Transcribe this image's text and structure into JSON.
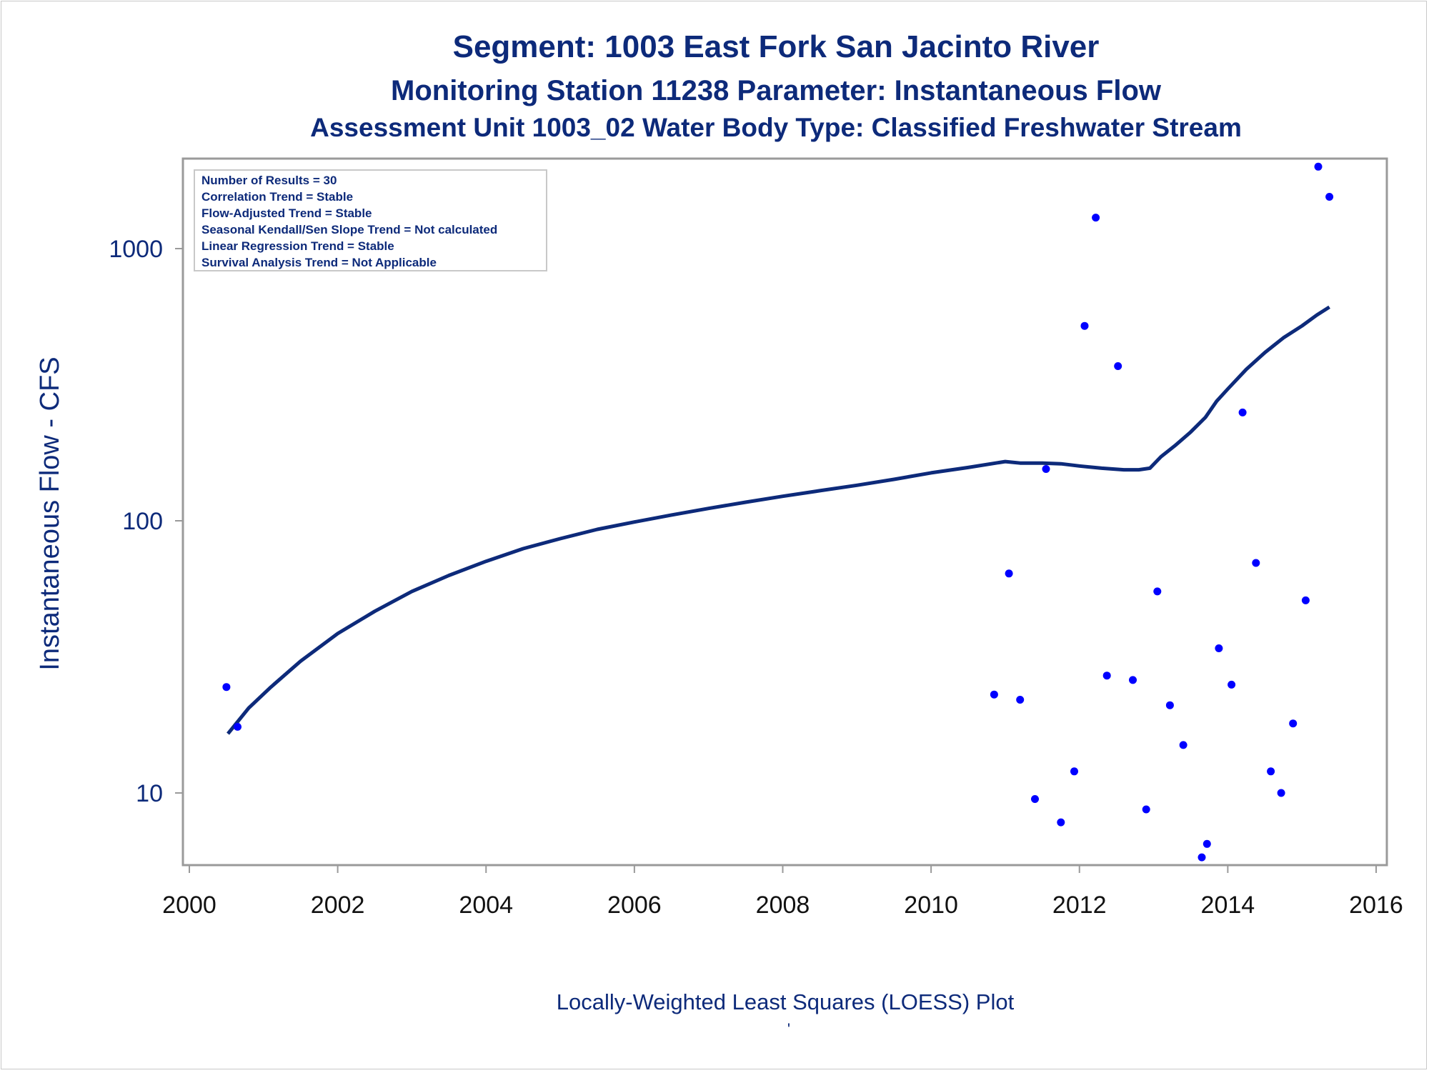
{
  "titles": {
    "line1": "Segment: 1003  East Fork San Jacinto River",
    "line2": "Monitoring Station 11238 Parameter: Instantaneous Flow",
    "line3": "Assessment Unit 1003_02   Water Body Type: Classified Freshwater Stream"
  },
  "footnote": "Locally-Weighted Least Squares (LOESS) Plot",
  "footnote_mark": "'",
  "stats_box": [
    "Number of Results = 30",
    "Correlation Trend = Stable",
    "Flow-Adjusted Trend = Stable",
    "Seasonal Kendall/Sen Slope Trend = Not calculated",
    "Linear Regression Trend = Stable",
    "Survival Analysis Trend = Not Applicable"
  ],
  "colors": {
    "text": "#0d2a7a",
    "points": "#0000ff",
    "loess": "#0d2a7a",
    "axis": "#9a9a9a"
  },
  "chart_data": {
    "type": "scatter",
    "title": "Segment: 1003  East Fork San Jacinto River",
    "ylabel": "Instantaneous Flow - CFS",
    "xlabel": "",
    "yscale": "log",
    "xlim": [
      2000,
      2016
    ],
    "ylim": [
      5.5,
      1850
    ],
    "x_ticks": [
      2000,
      2002,
      2004,
      2006,
      2008,
      2010,
      2012,
      2014,
      2016
    ],
    "y_ticks": [
      10,
      100,
      1000
    ],
    "grid": false,
    "series": [
      {
        "type": "scatter",
        "x": [
          2000.5,
          2000.65,
          2010.85,
          2011.05,
          2011.2,
          2011.4,
          2011.55,
          2011.75,
          2011.93,
          2012.07,
          2012.22,
          2012.37,
          2012.52,
          2012.72,
          2012.9,
          2013.05,
          2013.22,
          2013.4,
          2013.65,
          2013.72,
          2013.88,
          2014.05,
          2014.2,
          2014.38,
          2014.58,
          2014.72,
          2014.88,
          2015.05,
          2015.22,
          2015.37
        ],
        "y": [
          24.5,
          17.5,
          23,
          64,
          22,
          9.5,
          155,
          7.8,
          12,
          520,
          1300,
          27,
          370,
          26,
          8.7,
          55,
          21,
          15,
          5.8,
          6.5,
          34,
          25,
          250,
          70,
          12,
          10,
          18,
          51,
          2000,
          1550
        ]
      },
      {
        "type": "line",
        "x": [
          2000.52,
          2000.8,
          2001.1,
          2001.5,
          2002.0,
          2002.5,
          2003.0,
          2003.5,
          2004.0,
          2004.5,
          2005.0,
          2005.5,
          2006.0,
          2006.5,
          2007.0,
          2007.5,
          2008.0,
          2008.5,
          2009.0,
          2009.5,
          2010.0,
          2010.5,
          2011.0,
          2011.2,
          2011.5,
          2011.75,
          2012.0,
          2012.3,
          2012.6,
          2012.8,
          2012.95,
          2013.1,
          2013.3,
          2013.5,
          2013.7,
          2013.85,
          2014.0,
          2014.25,
          2014.5,
          2014.75,
          2015.0,
          2015.2,
          2015.37
        ],
        "y": [
          16.5,
          20.5,
          24.5,
          30.5,
          38.5,
          46.5,
          55,
          63,
          71,
          79,
          86,
          93,
          99,
          105,
          111,
          117,
          123,
          129,
          135,
          142,
          150,
          157,
          165,
          163,
          163,
          162,
          159,
          156,
          154,
          154,
          156,
          172,
          190,
          212,
          240,
          275,
          305,
          360,
          415,
          470,
          520,
          570,
          610
        ]
      }
    ]
  }
}
